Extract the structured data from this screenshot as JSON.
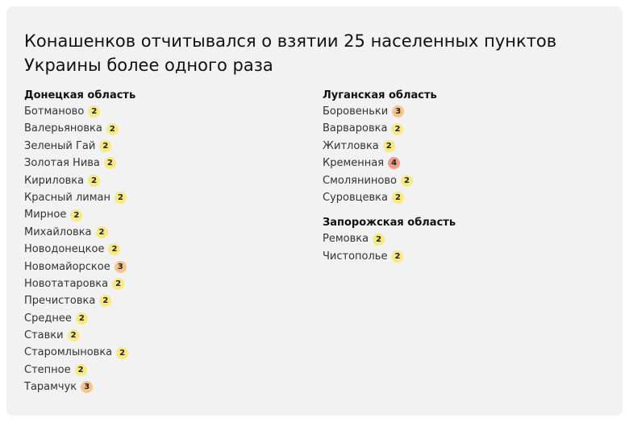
{
  "title": "Конашенков отчитывался о взятии 25 населенных пунктов Украины более одного раза",
  "regions": [
    {
      "name": "Донецкая область",
      "items": [
        {
          "name": "Ботманово",
          "count": 2
        },
        {
          "name": "Валерьяновка",
          "count": 2
        },
        {
          "name": "Зеленый Гай",
          "count": 2
        },
        {
          "name": "Золотая Нива",
          "count": 2
        },
        {
          "name": "Кириловка",
          "count": 2
        },
        {
          "name": "Красный лиман",
          "count": 2
        },
        {
          "name": "Мирное",
          "count": 2
        },
        {
          "name": "Михайловка",
          "count": 2
        },
        {
          "name": "Новодонецкое",
          "count": 2
        },
        {
          "name": "Новомайорское",
          "count": 3
        },
        {
          "name": "Новотатаровка",
          "count": 2
        },
        {
          "name": "Пречистовка",
          "count": 2
        },
        {
          "name": "Среднее",
          "count": 2
        },
        {
          "name": "Ставки",
          "count": 2
        },
        {
          "name": "Старомлыновка",
          "count": 2
        },
        {
          "name": "Степное",
          "count": 2
        },
        {
          "name": "Тарамчук",
          "count": 3
        }
      ]
    },
    {
      "name": "Луганская область",
      "items": [
        {
          "name": "Боровеньки",
          "count": 3
        },
        {
          "name": "Варваровка",
          "count": 2
        },
        {
          "name": "Житловка",
          "count": 2
        },
        {
          "name": "Кременная",
          "count": 4
        },
        {
          "name": "Смоляниново",
          "count": 2
        },
        {
          "name": "Суровцевка",
          "count": 2
        }
      ]
    },
    {
      "name": "Запорожская область",
      "items": [
        {
          "name": "Ремовка",
          "count": 2
        },
        {
          "name": "Чистополье",
          "count": 2
        }
      ]
    }
  ]
}
